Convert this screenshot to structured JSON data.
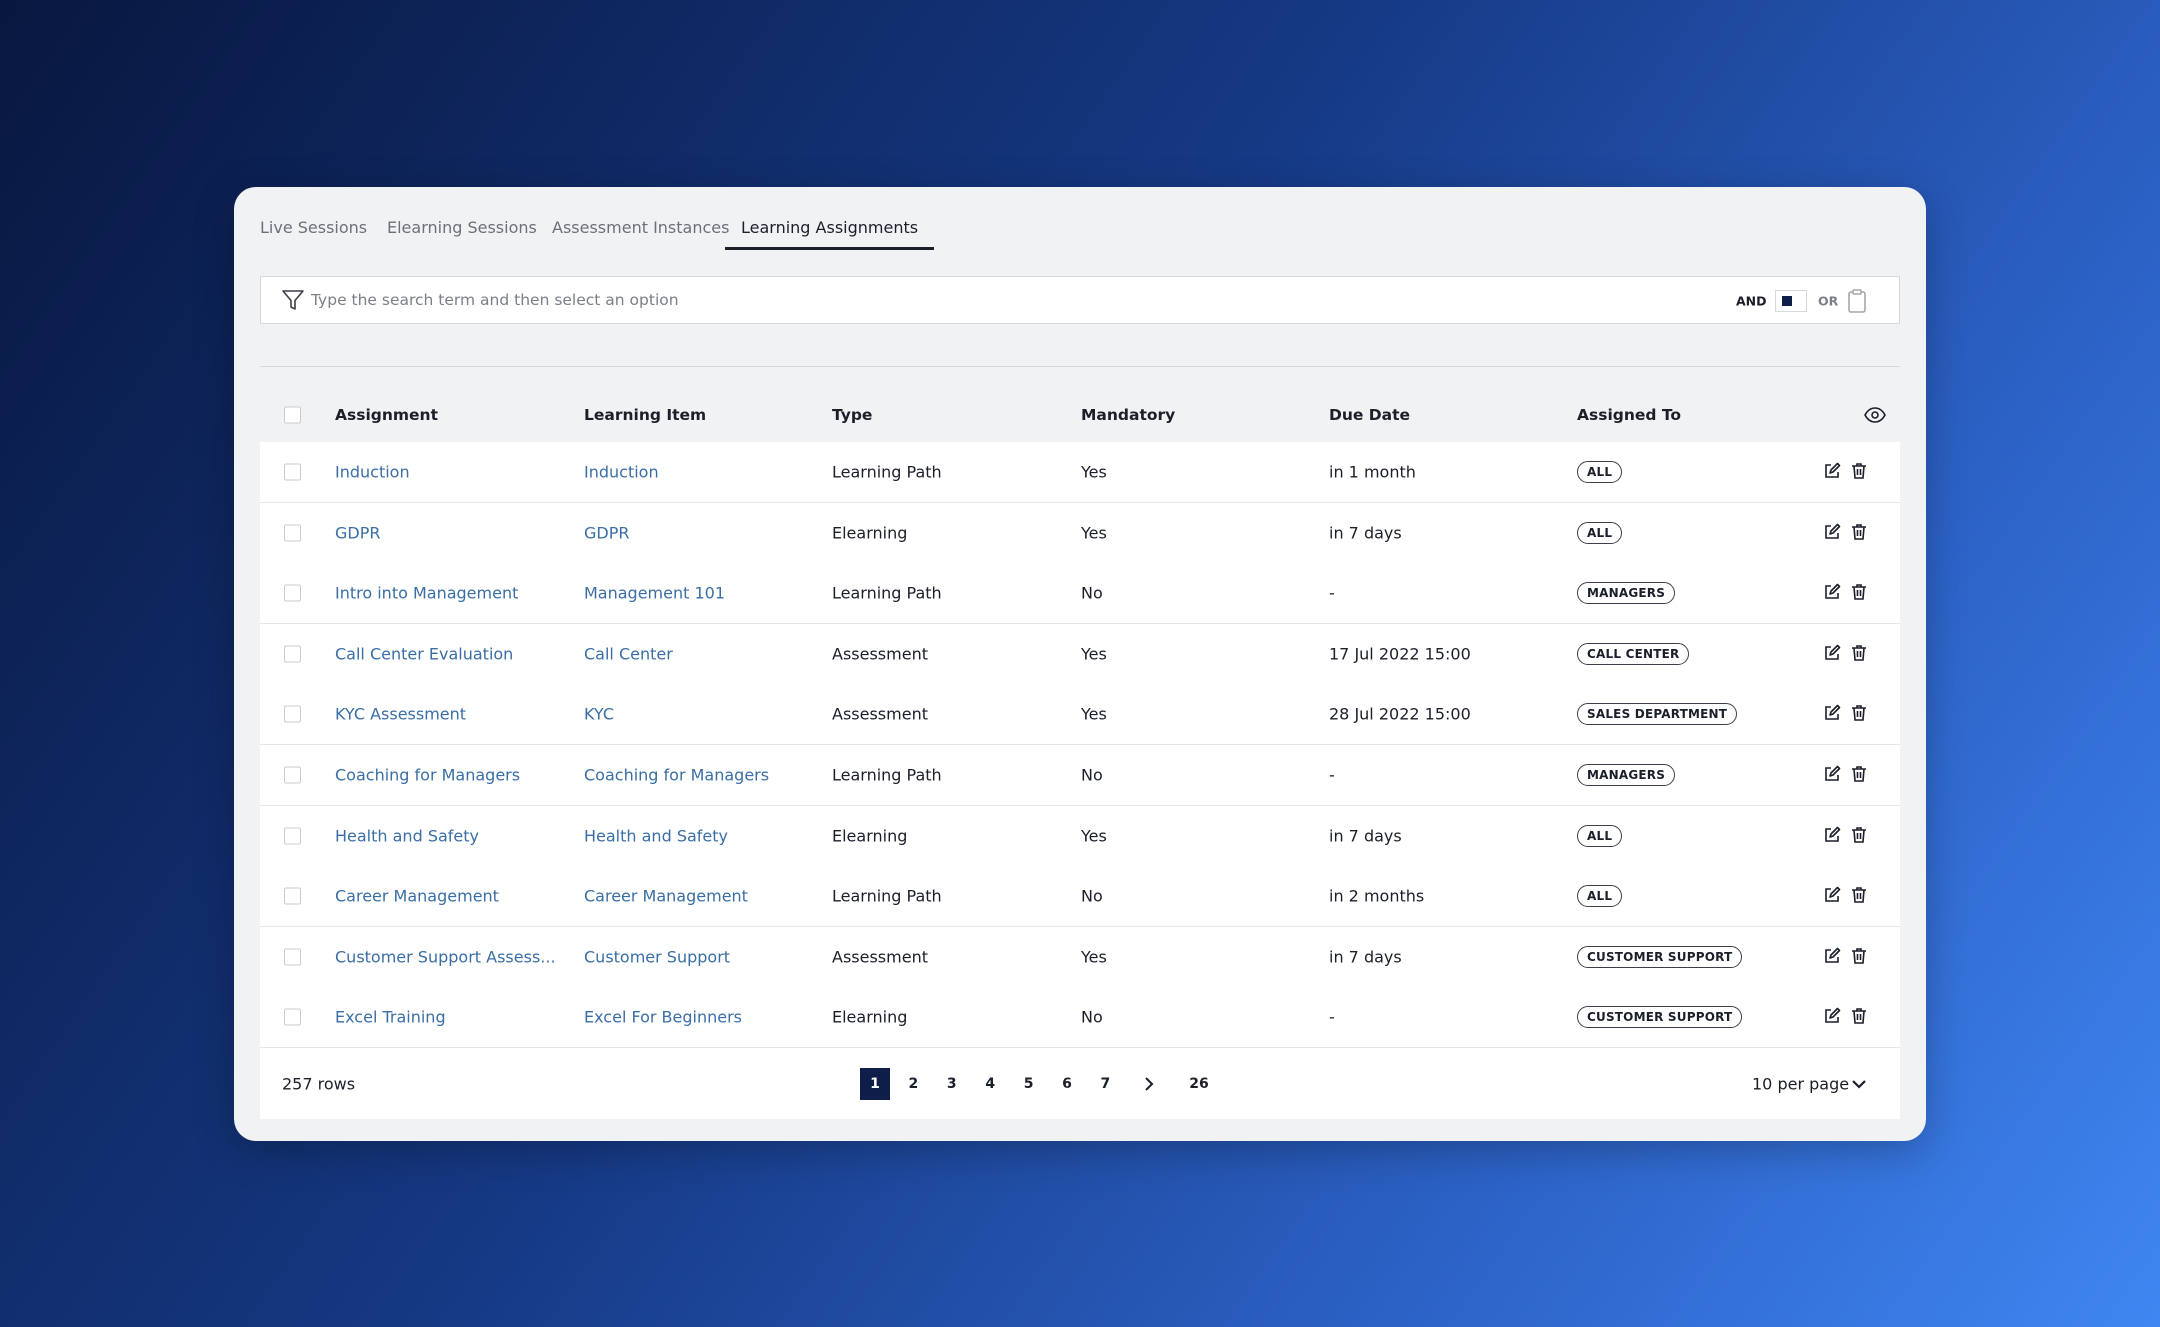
{
  "tabs": [
    "Live Sessions",
    "Elearning Sessions",
    "Assessment Instances",
    "Learning Assignments"
  ],
  "active_tab": 3,
  "search": {
    "placeholder": "Type the search term and then select an option",
    "and_label": "AND",
    "or_label": "OR"
  },
  "table": {
    "columns": [
      "Assignment",
      "Learning Item",
      "Type",
      "Mandatory",
      "Due Date",
      "Assigned To"
    ],
    "rows": [
      [
        "Induction",
        "Induction",
        "Learning Path",
        "Yes",
        "in 1 month",
        "ALL"
      ],
      [
        "GDPR",
        "GDPR",
        "Elearning",
        "Yes",
        "in 7 days",
        "ALL"
      ],
      [
        "Intro into Management",
        "Management 101",
        "Learning Path",
        "No",
        "-",
        "MANAGERS"
      ],
      [
        "Call Center Evaluation",
        "Call Center",
        "Assessment",
        "Yes",
        "17 Jul 2022 15:00",
        "CALL CENTER"
      ],
      [
        "KYC Assessment",
        "KYC",
        "Assessment",
        "Yes",
        "28 Jul 2022 15:00",
        "SALES DEPARTMENT"
      ],
      [
        "Coaching for Managers",
        "Coaching for Managers",
        "Learning Path",
        "No",
        "-",
        "MANAGERS"
      ],
      [
        "Health and Safety",
        "Health and Safety",
        "Elearning",
        "Yes",
        "in 7 days",
        "ALL"
      ],
      [
        "Career Management",
        "Career Management",
        "Learning Path",
        "No",
        "in 2 months",
        "ALL"
      ],
      [
        "Customer Support Assess...",
        "Customer Support",
        "Assessment",
        "Yes",
        "in 7 days",
        "CUSTOMER SUPPORT"
      ],
      [
        "Excel Training",
        "Excel For Beginners",
        "Elearning",
        "No",
        "-",
        "CUSTOMER SUPPORT"
      ]
    ]
  },
  "footer": {
    "row_count": "257 rows",
    "pages": [
      "1",
      "2",
      "3",
      "4",
      "5",
      "6",
      "7"
    ],
    "last_page": "26",
    "current_page": 0,
    "per_page": "10 per page"
  }
}
